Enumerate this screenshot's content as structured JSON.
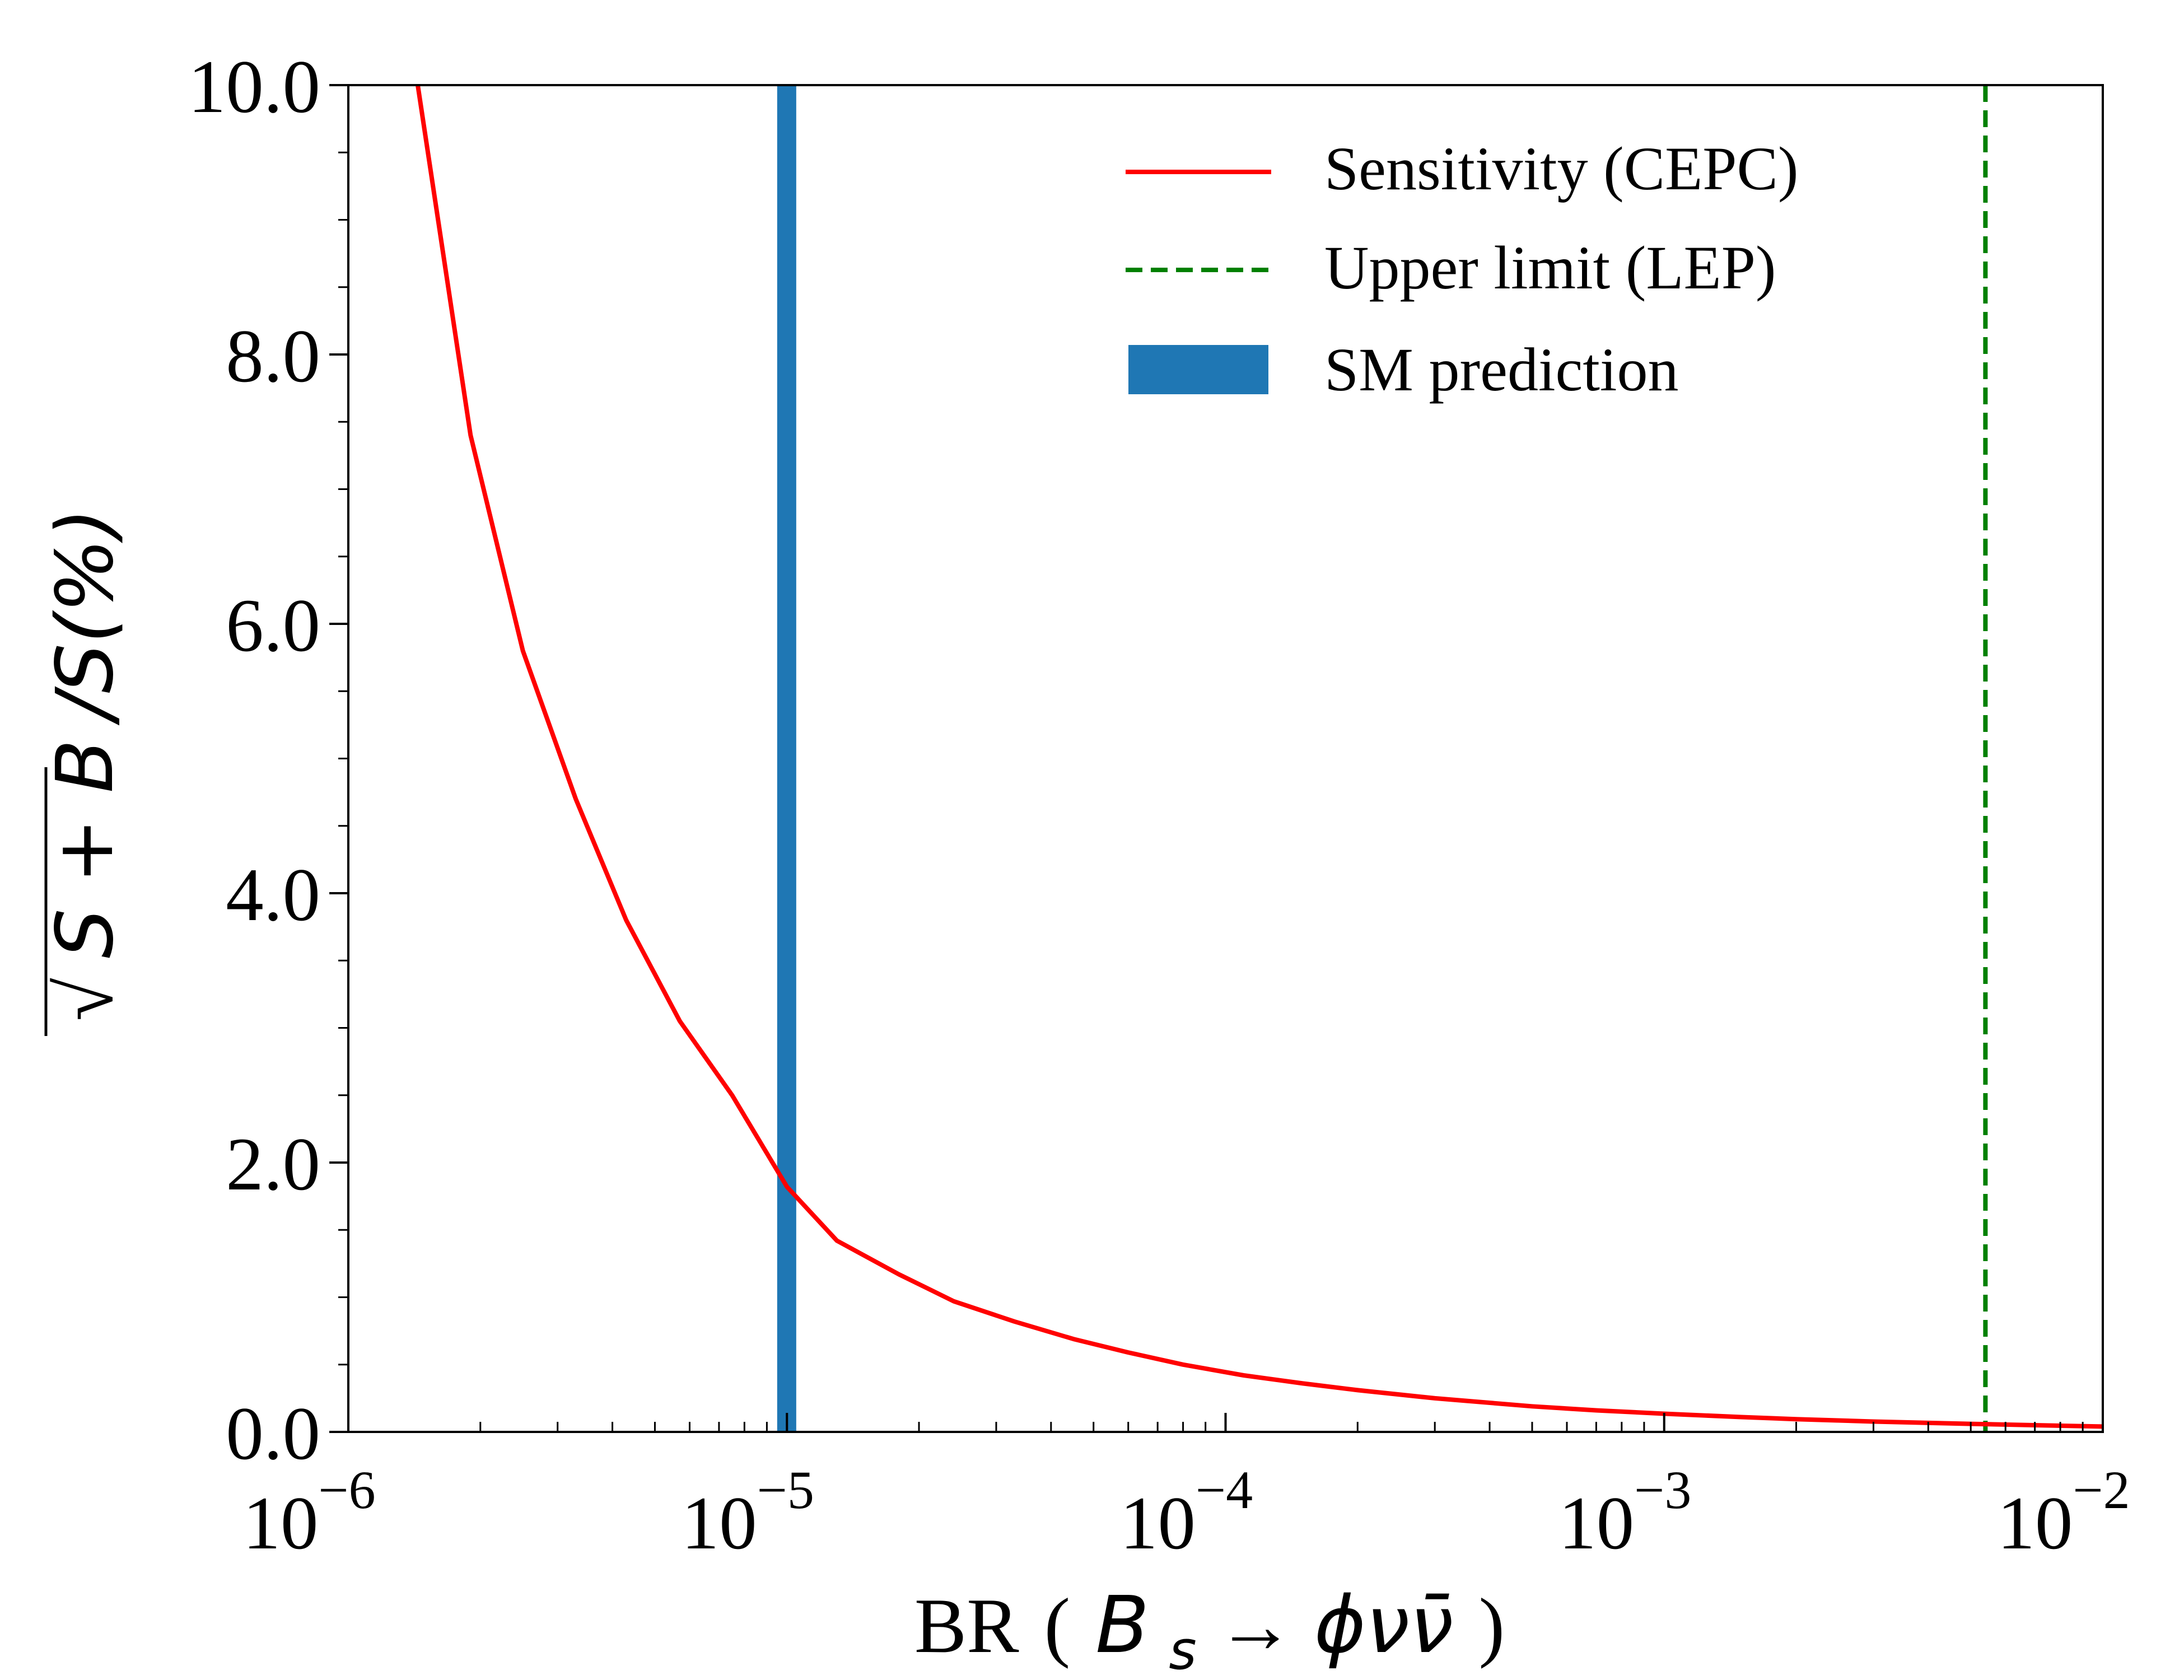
{
  "chart_data": {
    "type": "line",
    "xscale": "log",
    "xlim": [
      1e-06,
      0.01
    ],
    "ylim": [
      0.0,
      10.0
    ],
    "grid": false,
    "legend_placement": "top-right",
    "xlabel": {
      "prefix": "BR",
      "open": "(",
      "math": "B",
      "subscript": "s",
      "arrow": "→",
      "rest": "ϕνν̄",
      "close": ")"
    },
    "ylabel": {
      "radical": "√",
      "radicand": "S + B",
      "suffix": "/S(%)"
    },
    "x_ticks": [
      {
        "value": 1e-06,
        "base": "10",
        "exp": "−6"
      },
      {
        "value": 1e-05,
        "base": "10",
        "exp": "−5"
      },
      {
        "value": 0.0001,
        "base": "10",
        "exp": "−4"
      },
      {
        "value": 0.001,
        "base": "10",
        "exp": "−3"
      },
      {
        "value": 0.01,
        "base": "10",
        "exp": "−2"
      }
    ],
    "y_ticks": [
      {
        "value": 0,
        "label": "0.0"
      },
      {
        "value": 2,
        "label": "2.0"
      },
      {
        "value": 4,
        "label": "4.0"
      },
      {
        "value": 6,
        "label": "6.0"
      },
      {
        "value": 8,
        "label": "8.0"
      },
      {
        "value": 10,
        "label": "10.0"
      }
    ],
    "series": [
      {
        "name": "Sensitivity (CEPC)",
        "color": "#ff0000",
        "style": "solid",
        "x": [
          1.25e-06,
          1.44e-06,
          1.9e-06,
          2.5e-06,
          3.3e-06,
          4.3e-06,
          5.7e-06,
          7.5e-06,
          1e-05,
          1.3e-05,
          1.8e-05,
          2.4e-05,
          3.3e-05,
          4.5e-05,
          6e-05,
          8e-05,
          0.00011,
          0.00015,
          0.0002,
          0.0003,
          0.0005,
          0.0007,
          0.001,
          0.0015,
          0.002,
          0.003,
          0.005,
          0.007,
          0.01
        ],
        "y": [
          11.5,
          10.0,
          7.4,
          5.8,
          4.7,
          3.8,
          3.05,
          2.5,
          1.82,
          1.42,
          1.17,
          0.97,
          0.82,
          0.69,
          0.59,
          0.5,
          0.42,
          0.36,
          0.31,
          0.25,
          0.19,
          0.16,
          0.135,
          0.11,
          0.095,
          0.077,
          0.06,
          0.05,
          0.04
        ]
      },
      {
        "name": "Upper limit (LEP)",
        "color": "#008000",
        "style": "dashed",
        "type": "vline",
        "x": 0.0054
      },
      {
        "name": "SM prediction",
        "color": "#1f77b4",
        "style": "band",
        "type": "vband",
        "x_range": [
          9.5e-06,
          1.05e-05
        ]
      }
    ]
  }
}
